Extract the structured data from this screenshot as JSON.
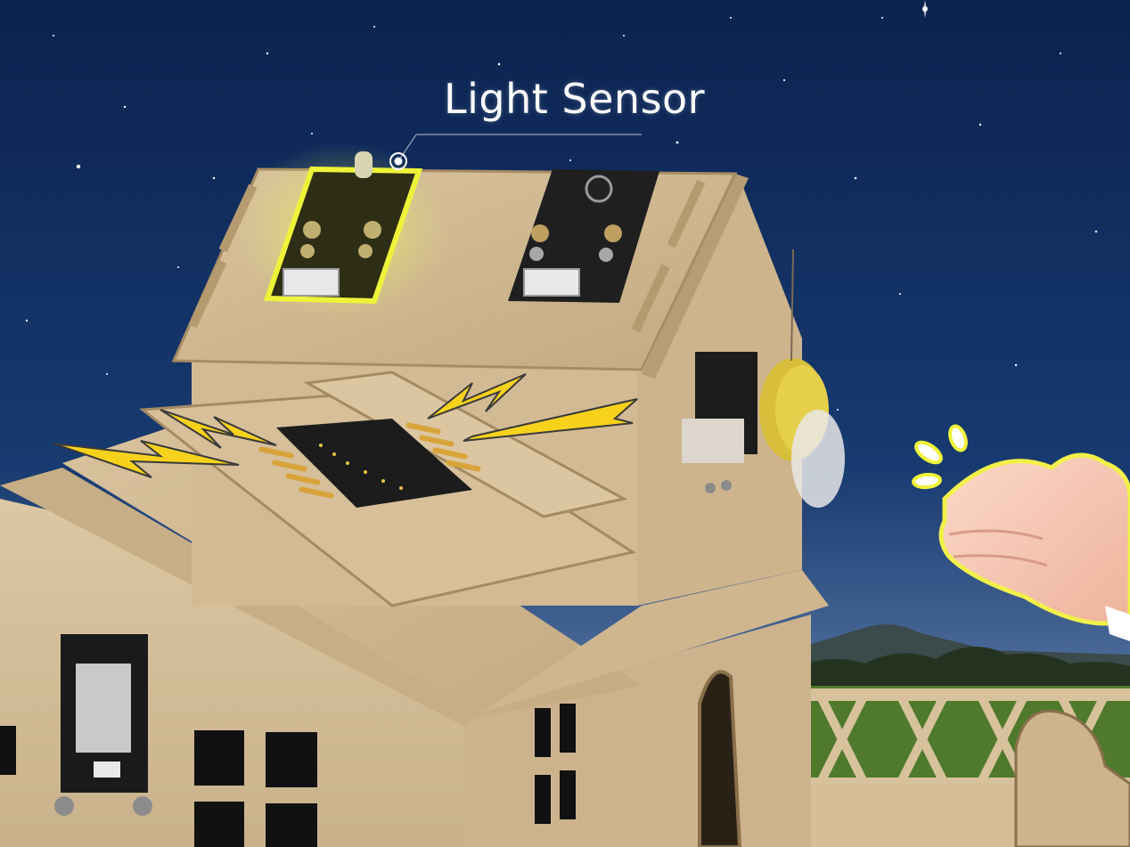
{
  "callout": {
    "label": "Light Sensor"
  },
  "colors": {
    "sky_top": "#0b2350",
    "sky_bottom": "#6f8fb8",
    "wood": "#d6c09c",
    "wood_dark": "#b39a73",
    "sensor_glow": "#e8f23a",
    "lightning": "#f7d21c",
    "hand": "#f5c8b4"
  },
  "icons": [
    "light-sensor-module",
    "sound-sensor-module",
    "lightning-bolt-icon",
    "clapping-hands-icon",
    "clap-burst-icon",
    "fan-motor"
  ]
}
